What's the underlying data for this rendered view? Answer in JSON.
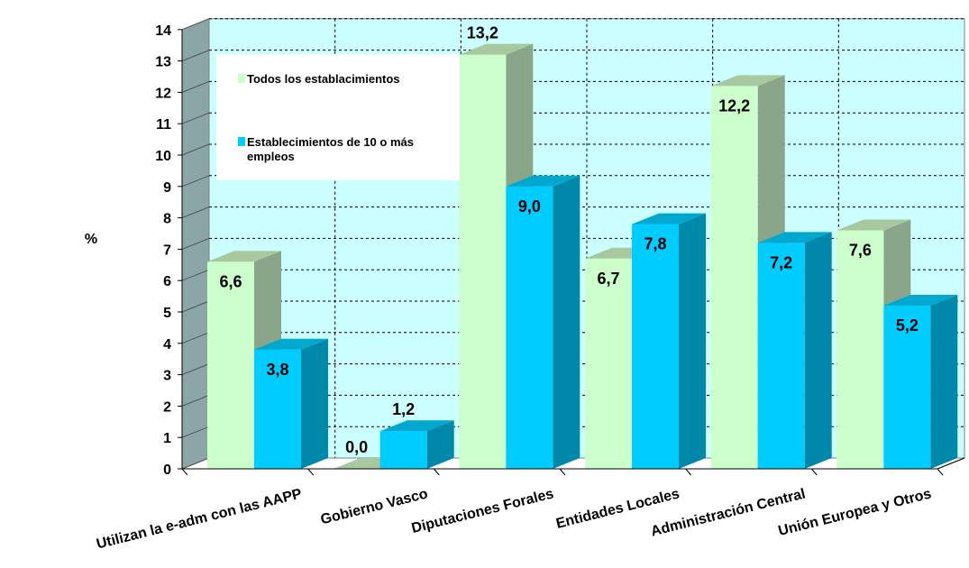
{
  "chart_data": {
    "type": "bar",
    "title": "",
    "ylabel": "%",
    "xlabel": "",
    "ylim": [
      0,
      14
    ],
    "yticks": [
      0,
      1,
      2,
      3,
      4,
      5,
      6,
      7,
      8,
      9,
      10,
      11,
      12,
      13,
      14
    ],
    "grid": true,
    "three_d": true,
    "legend_position": "top-left",
    "categories": [
      "Utilizan la e-adm con las AAPP",
      "Gobierno Vasco",
      "Diputaciones Forales",
      "Entidades Locales",
      "Administración Central",
      "Unión Europea y Otros"
    ],
    "series": [
      {
        "name": "Todos los establacimientos",
        "values": [
          6.6,
          0.0,
          13.2,
          6.7,
          12.2,
          7.6
        ],
        "labels": [
          "6,6",
          "0,0",
          "13,2",
          "6,7",
          "12,2",
          "7,6"
        ],
        "color": "#ccffcc",
        "side_color": "#8aa68a",
        "top_color": "#a8c8a0"
      },
      {
        "name": "Establecimientos de 10 o más empleos",
        "values": [
          3.8,
          1.2,
          9.0,
          7.8,
          7.2,
          5.2
        ],
        "labels": [
          "3,8",
          "1,2",
          "9,0",
          "7,8",
          "7,2",
          "5,2"
        ],
        "color": "#00ccff",
        "side_color": "#0088aa",
        "top_color": "#00a8d0"
      }
    ],
    "colors": {
      "plot_background": "#ccffff",
      "floor": "#ffffff",
      "side_wall": "#8aa6a6",
      "grid": "#000000"
    }
  }
}
